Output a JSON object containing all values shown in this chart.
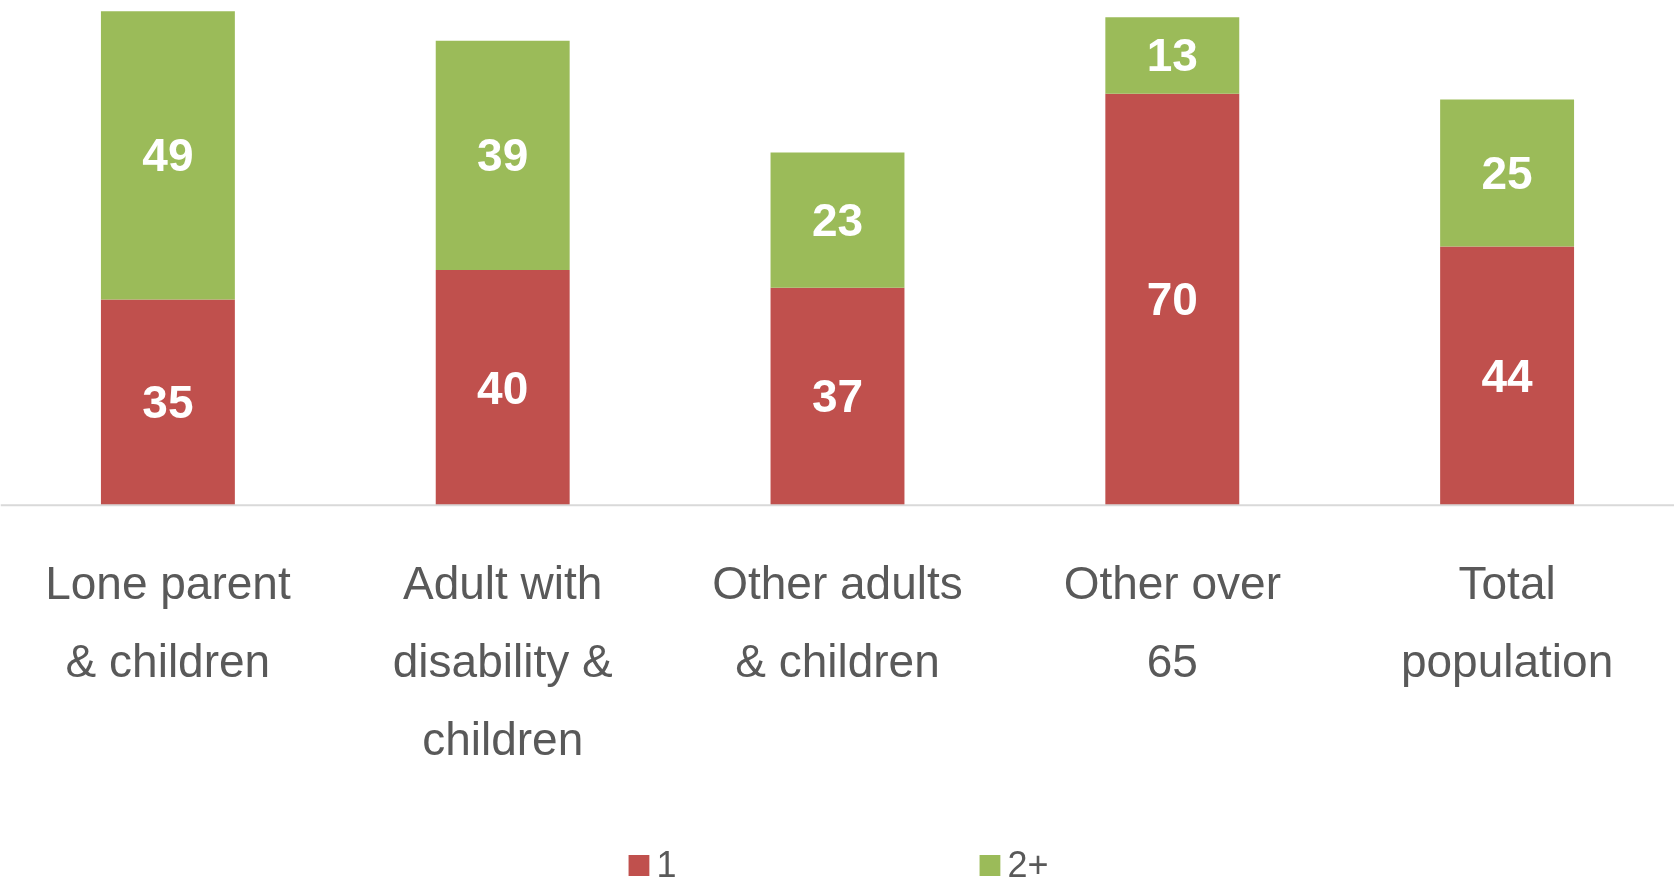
{
  "chart_data": {
    "type": "bar",
    "stacked": true,
    "data_labels": true,
    "grid": false,
    "legend": "bottom",
    "categories": [
      "Lone parent & children",
      "Adult with disability & children",
      "Other adults & children",
      "Other over 65",
      "Total population"
    ],
    "series": [
      {
        "name": "1",
        "color": "#c0504d",
        "values": [
          35,
          40,
          37,
          70,
          44
        ]
      },
      {
        "name": "2+",
        "color": "#9bbb59",
        "values": [
          49,
          39,
          23,
          13,
          25
        ]
      }
    ]
  }
}
